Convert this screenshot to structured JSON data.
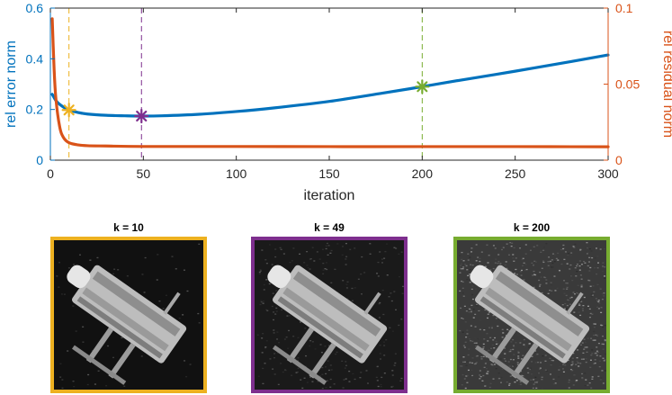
{
  "chart_data": {
    "type": "line",
    "xlabel": "iteration",
    "ylabel_left": "rel error norm",
    "ylabel_right": "rel residual norm",
    "xlim": [
      0,
      300
    ],
    "ylim_left": [
      0,
      0.6
    ],
    "ylim_right": [
      0,
      0.1
    ],
    "x_ticks": [
      "0",
      "50",
      "100",
      "150",
      "200",
      "250",
      "300"
    ],
    "y_ticks_left": [
      "0",
      "0.2",
      "0.4",
      "0.6"
    ],
    "y_ticks_right": [
      "0",
      "0.05",
      "0.1"
    ],
    "series": [
      {
        "name": "rel error norm",
        "axis": "left",
        "color": "#0072BD",
        "x": [
          1,
          3,
          5,
          8,
          10,
          15,
          20,
          30,
          40,
          49,
          60,
          80,
          100,
          120,
          150,
          180,
          200,
          220,
          250,
          280,
          300
        ],
        "y": [
          0.26,
          0.235,
          0.22,
          0.205,
          0.198,
          0.188,
          0.182,
          0.177,
          0.175,
          0.174,
          0.175,
          0.181,
          0.192,
          0.206,
          0.232,
          0.266,
          0.29,
          0.315,
          0.351,
          0.389,
          0.415
        ]
      },
      {
        "name": "rel residual norm",
        "axis": "right",
        "color": "#D95319",
        "x": [
          1,
          2,
          3,
          5,
          7,
          10,
          15,
          20,
          30,
          50,
          100,
          150,
          200,
          250,
          300
        ],
        "y": [
          0.093,
          0.06,
          0.04,
          0.022,
          0.015,
          0.0115,
          0.01,
          0.0095,
          0.0093,
          0.009,
          0.009,
          0.0089,
          0.0089,
          0.0089,
          0.0088
        ]
      }
    ],
    "markers": [
      {
        "k": 10,
        "value": 0.198,
        "color": "#EDB120"
      },
      {
        "k": 49,
        "value": 0.174,
        "color": "#7E2F8E"
      },
      {
        "k": 200,
        "value": 0.29,
        "color": "#77AC30"
      }
    ],
    "grid": false
  },
  "panels": [
    {
      "title": "k = 10",
      "color": "#EDB120",
      "noise": "low"
    },
    {
      "title": "k = 49",
      "color": "#7E2F8E",
      "noise": "medium"
    },
    {
      "title": "k = 200",
      "color": "#77AC30",
      "noise": "high"
    }
  ]
}
